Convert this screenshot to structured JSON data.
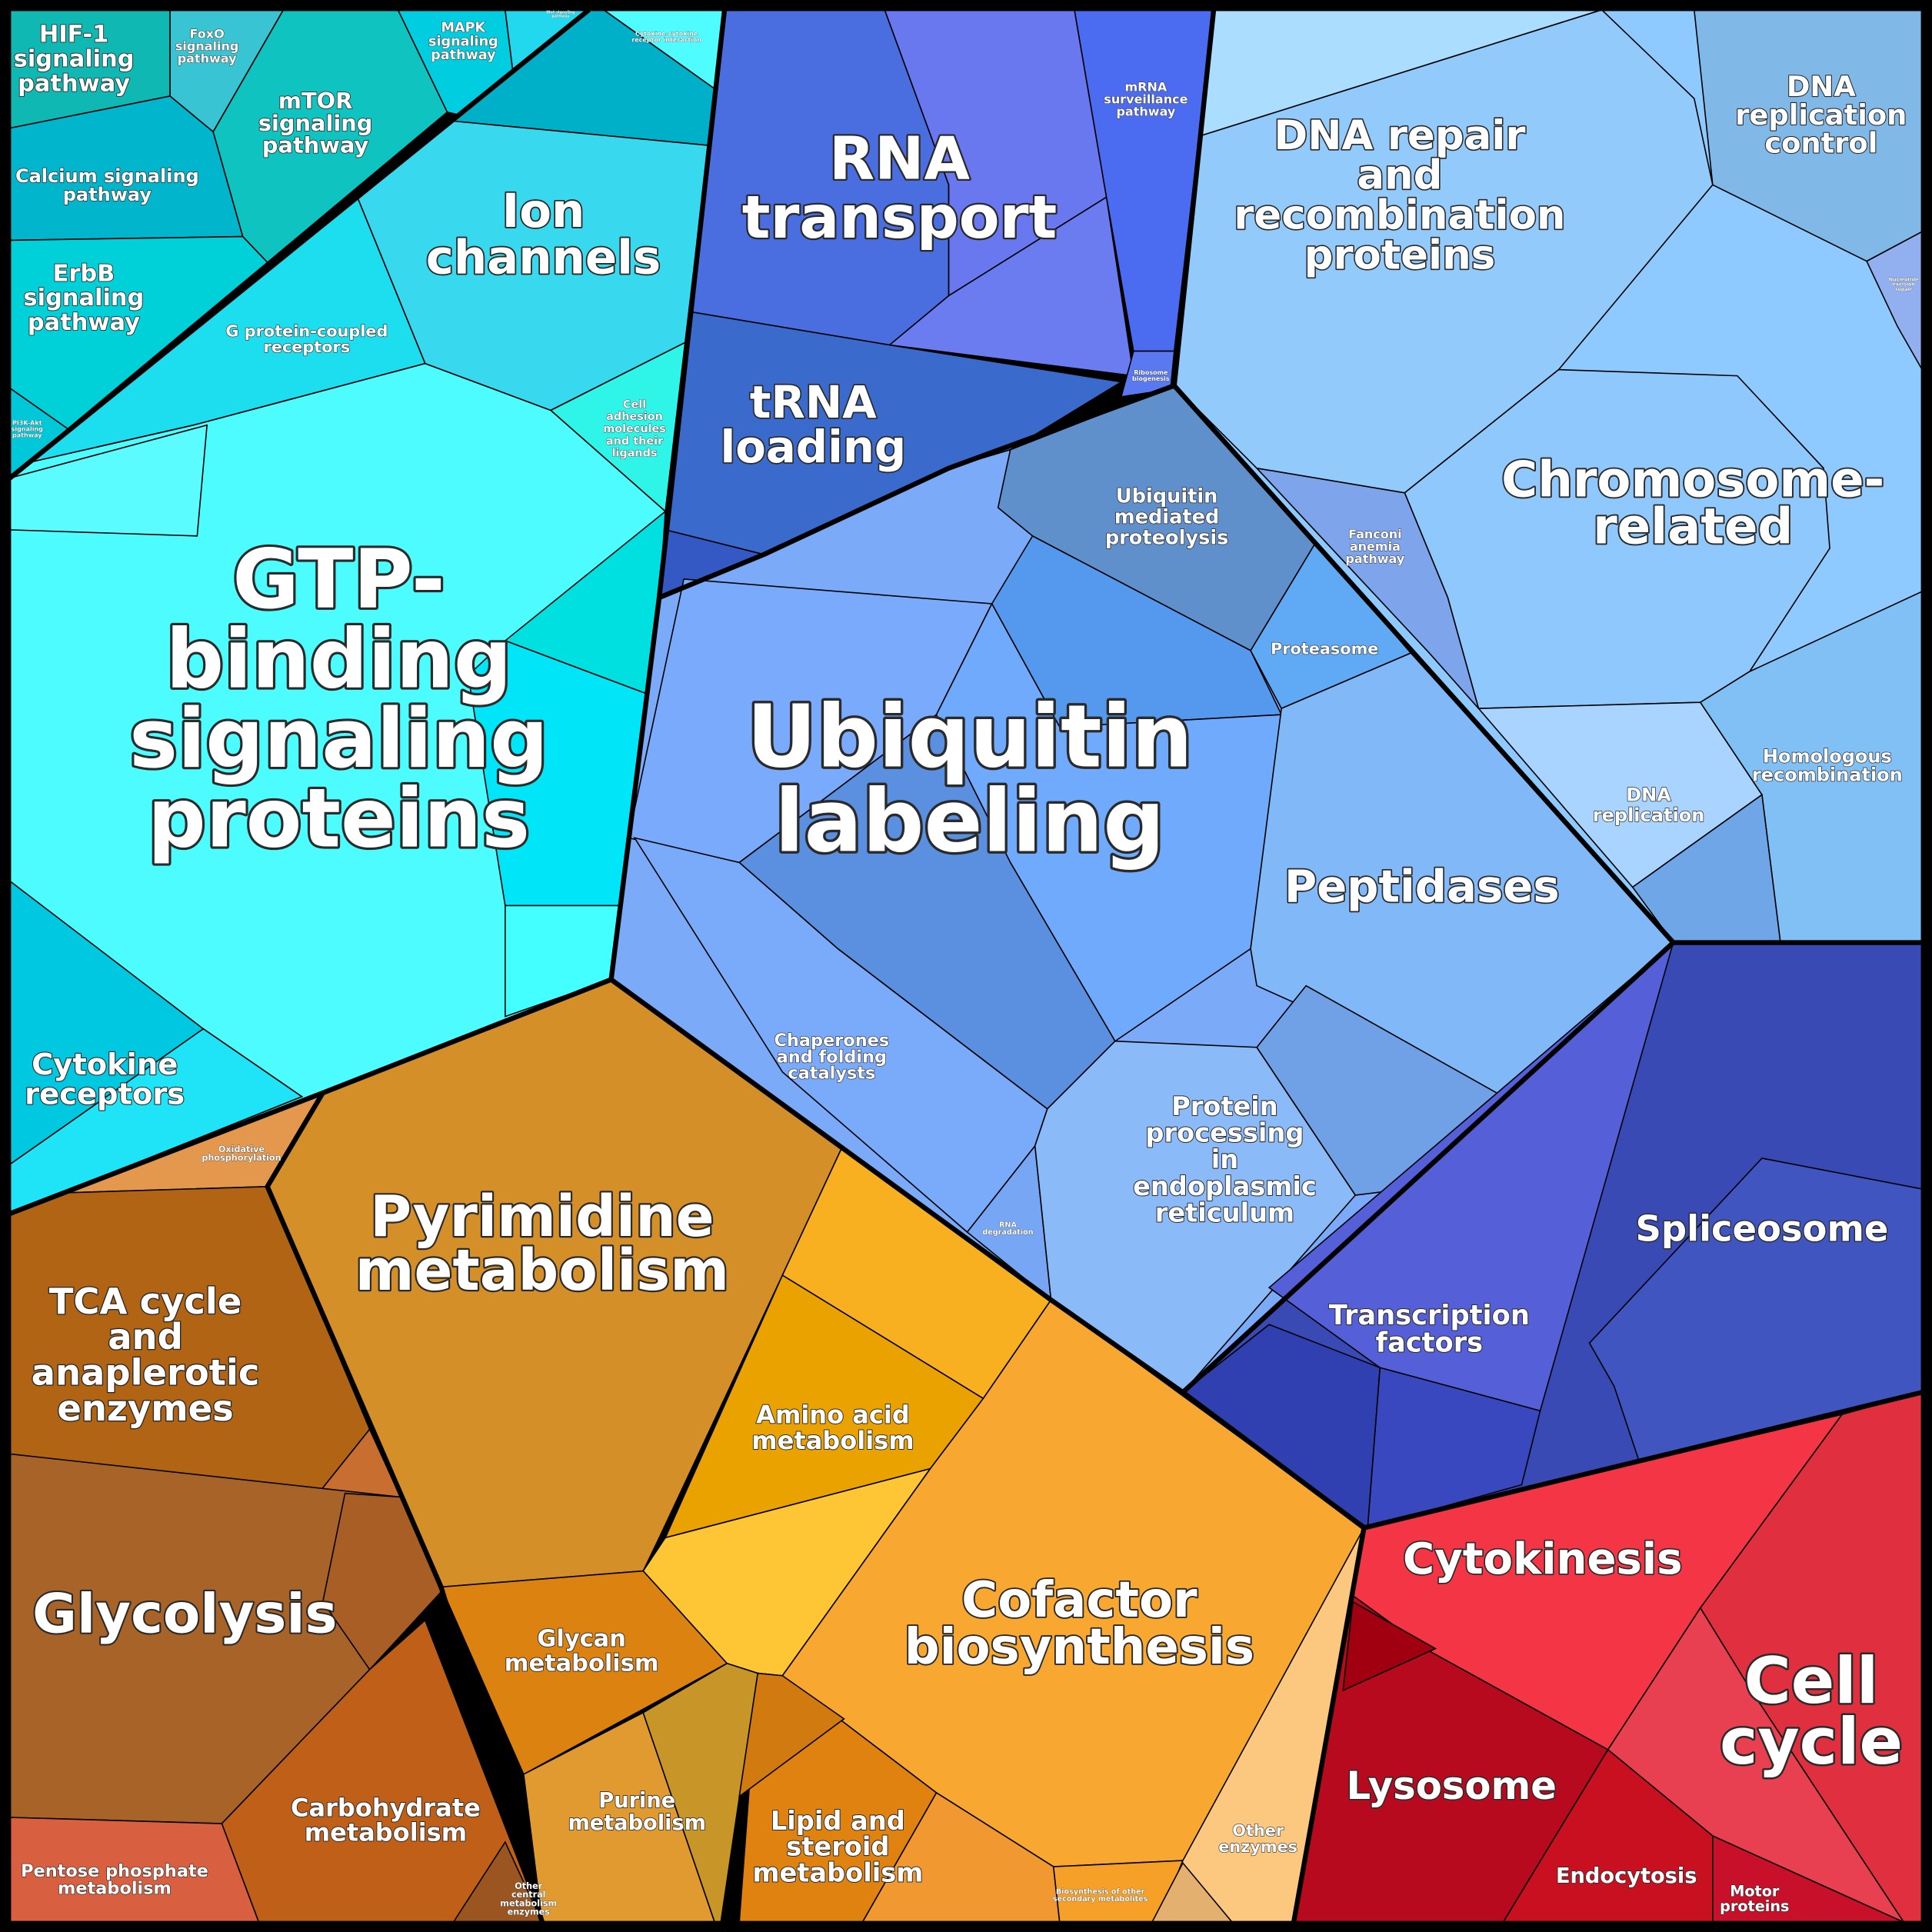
{
  "title": "Proteomap",
  "colors": {
    "signaling": "#4dfcff",
    "rna": "#4a6ee0",
    "ubiquitin": "#7aaaf8",
    "dna": "#8ecaff",
    "splicing": "#3a4ab5",
    "cell_cycle": "#f43545",
    "central_metabolism": "#a86428",
    "metabolism": "#f8a830"
  },
  "labels": {
    "hif1": [
      "HIF-1",
      "signaling",
      "pathway"
    ],
    "foxo": [
      "FoxO",
      "signaling",
      "pathway"
    ],
    "mtor": [
      "mTOR",
      "signaling",
      "pathway"
    ],
    "mapk": [
      "MAPK",
      "signaling",
      "pathway"
    ],
    "wnt": [
      "Wnt signaling",
      "pathway"
    ],
    "cytokine_cytokine": [
      "Cytokine-cytokine",
      "receptor interaction"
    ],
    "calcium": [
      "Calcium signaling",
      "pathway"
    ],
    "erbb": [
      "ErbB",
      "signaling",
      "pathway"
    ],
    "pi3k": [
      "PI3K-Akt",
      "signaling",
      "pathway"
    ],
    "ion": [
      "Ion",
      "channels"
    ],
    "gpcr": [
      "G protein-coupled",
      "receptors"
    ],
    "cell_adhesion": [
      "Cell",
      "adhesion",
      "molecules",
      "and their",
      "ligands"
    ],
    "gtp": [
      "GTP-",
      "binding",
      "signaling",
      "proteins"
    ],
    "cytokine_receptors": [
      "Cytokine",
      "receptors"
    ],
    "rna_transport": [
      "RNA",
      "transport"
    ],
    "mrna": [
      "mRNA",
      "surveillance",
      "pathway"
    ],
    "ribosome": [
      "Ribosome",
      "biogenesis"
    ],
    "trna": [
      "tRNA",
      "loading"
    ],
    "ubiq_med": [
      "Ubiquitin",
      "mediated",
      "proteolysis"
    ],
    "fanconi": [
      "Fanconi",
      "anemia",
      "pathway"
    ],
    "proteasome": [
      "Proteasome"
    ],
    "ubiquitin": [
      "Ubiquitin",
      "labeling"
    ],
    "peptidases": [
      "Peptidases"
    ],
    "chaperones": [
      "Chaperones",
      "and folding",
      "catalysts"
    ],
    "rna_deg": [
      "RNA",
      "degradation"
    ],
    "protein_proc": [
      "Protein",
      "processing",
      "in",
      "endoplasmic",
      "reticulum"
    ],
    "dna_repair": [
      "DNA repair",
      "and",
      "recombination",
      "proteins"
    ],
    "dna_repl_ctrl": [
      "DNA",
      "replication",
      "control"
    ],
    "ner": [
      "Nucleotide",
      "excision",
      "repair"
    ],
    "chromosome": [
      "Chromosome-",
      "related"
    ],
    "dna_repl": [
      "DNA",
      "replication"
    ],
    "homologous": [
      "Homologous",
      "recombination"
    ],
    "spliceosome": [
      "Spliceosome"
    ],
    "tf": [
      "Transcription",
      "factors"
    ],
    "cytokinesis": [
      "Cytokinesis"
    ],
    "cell_cycle": [
      "Cell",
      "cycle"
    ],
    "lysosome": [
      "Lysosome"
    ],
    "endocytosis": [
      "Endocytosis"
    ],
    "motor": [
      "Motor",
      "proteins"
    ],
    "ox_phos": [
      "Oxidative",
      "phosphorylation"
    ],
    "tca": [
      "TCA cycle",
      "and",
      "anaplerotic",
      "enzymes"
    ],
    "pyrimidine": [
      "Pyrimidine",
      "metabolism"
    ],
    "amino": [
      "Amino acid",
      "metabolism"
    ],
    "glycolysis": [
      "Glycolysis"
    ],
    "glycan": [
      "Glycan",
      "metabolism"
    ],
    "cofactor": [
      "Cofactor",
      "biosynthesis"
    ],
    "carbohydrate": [
      "Carbohydrate",
      "metabolism"
    ],
    "pentose": [
      "Pentose phosphate",
      "metabolism"
    ],
    "other_central": [
      "Other",
      "central",
      "metabolism",
      "enzymes"
    ],
    "purine": [
      "Purine",
      "metabolism"
    ],
    "lipid": [
      "Lipid and",
      "steroid",
      "metabolism"
    ],
    "biosynth_other": [
      "Biosynthesis of other",
      "secondary metabolites"
    ],
    "other_enzymes": [
      "Other",
      "enzymes"
    ]
  }
}
